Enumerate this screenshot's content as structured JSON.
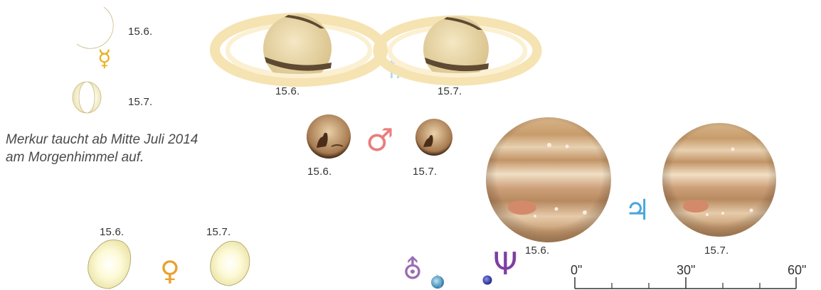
{
  "mercury": {
    "date1": "15.6.",
    "date2": "15.7.",
    "symbol": "☿",
    "symbol_color": "#e8b21e"
  },
  "caption": "Merkur taucht ab Mitte Juli 2014 am Morgenhimmel auf.",
  "saturn": {
    "date1": "15.6.",
    "date2": "15.7.",
    "symbol": "♄",
    "symbol_color": "#a9d7f0"
  },
  "mars": {
    "date1": "15.6.",
    "date2": "15.7.",
    "symbol": "♂",
    "symbol_color": "#ea7d7d"
  },
  "jupiter": {
    "date1": "15.6.",
    "date2": "15.7.",
    "symbol": "♃",
    "symbol_color": "#4aa6dd"
  },
  "venus": {
    "date1": "15.6.",
    "date2": "15.7.",
    "symbol": "♀",
    "symbol_color": "#eba02a"
  },
  "uranus": {
    "symbol": "⛢",
    "symbol_color": "#9b6bb3"
  },
  "neptune": {
    "symbol": "Ψ",
    "symbol_color": "#7d3fa0"
  },
  "scale": {
    "labels": [
      "0\"",
      "30\"",
      "60\""
    ]
  }
}
